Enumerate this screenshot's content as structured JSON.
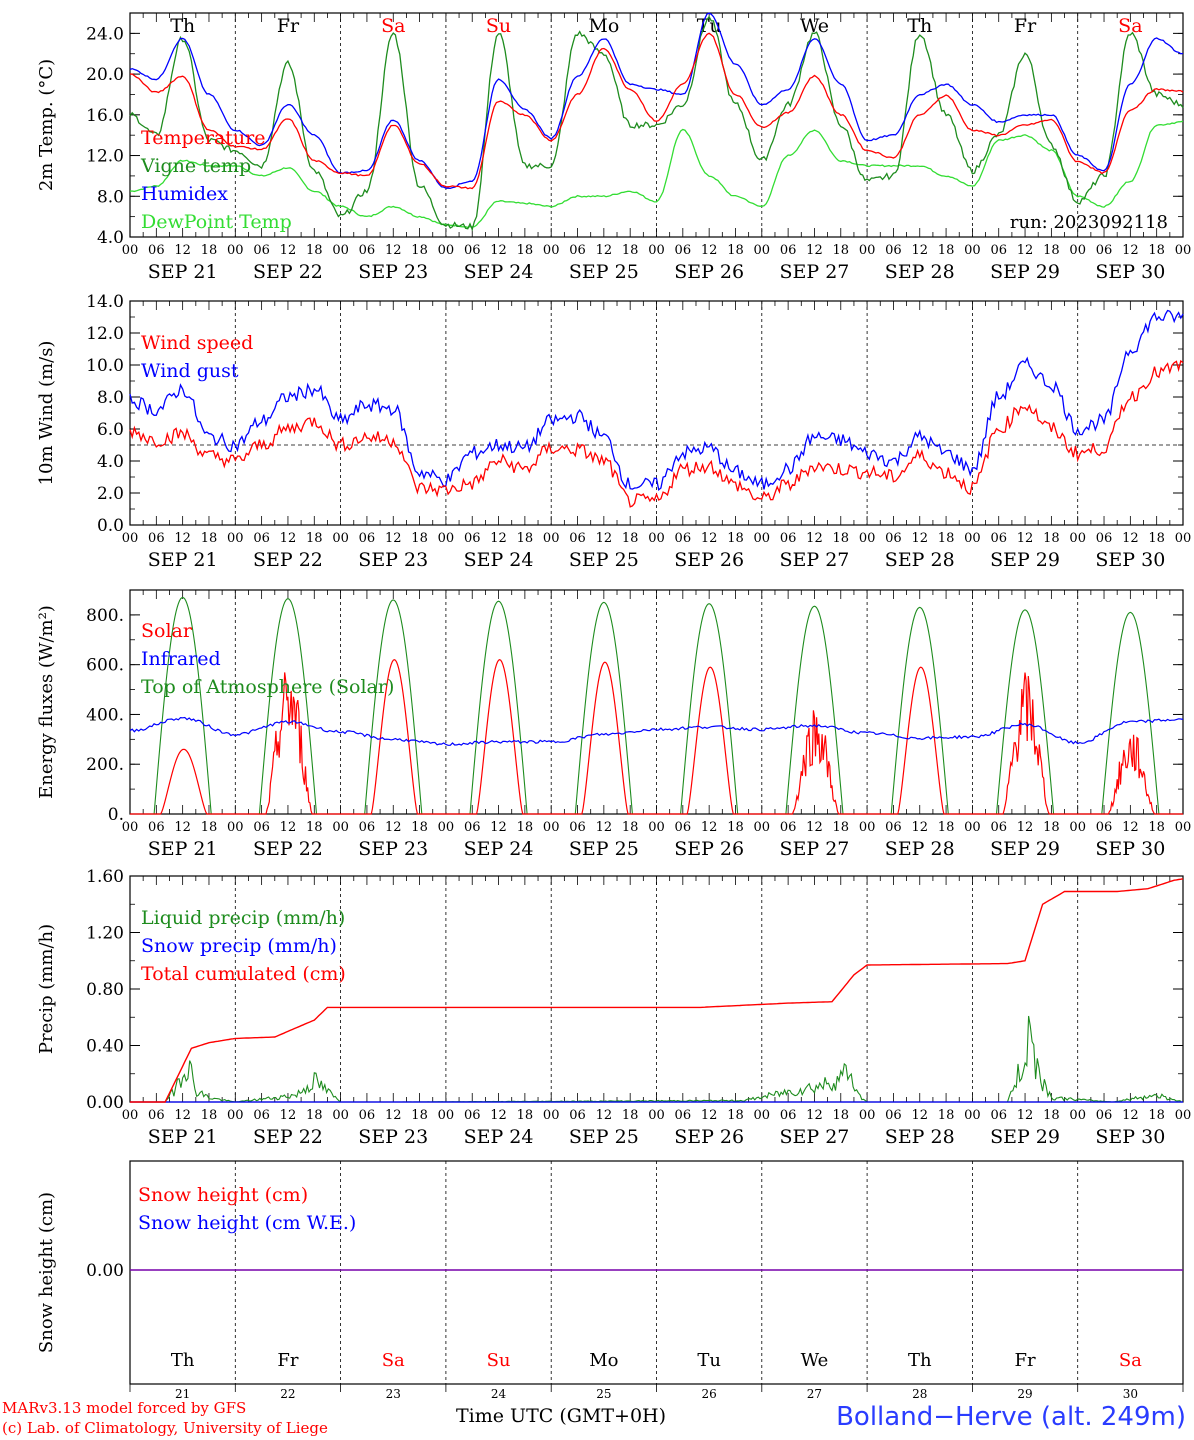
{
  "colors": {
    "red": "#ff0000",
    "green": "#1e8c1e",
    "lightgreen": "#33dd33",
    "blue": "#0000ff",
    "purple": "#7700aa",
    "black": "#000000"
  },
  "x_axis": {
    "hour_ticks": [
      "00",
      "06",
      "12",
      "18"
    ],
    "final_tick": "00",
    "dates": [
      "SEP 21",
      "SEP 22",
      "SEP 23",
      "SEP 24",
      "SEP 25",
      "SEP 26",
      "SEP 27",
      "SEP 28",
      "SEP 29",
      "SEP 30"
    ],
    "weekdays": [
      "Th",
      "Fr",
      "Sa",
      "Su",
      "Mo",
      "Tu",
      "We",
      "Th",
      "Fr",
      "Sa"
    ],
    "weekend_flags": [
      false,
      false,
      true,
      true,
      false,
      false,
      false,
      false,
      false,
      true
    ],
    "day_numbers": [
      "21",
      "22",
      "23",
      "24",
      "25",
      "26",
      "27",
      "28",
      "29",
      "30"
    ]
  },
  "footer": {
    "model_line": "MARv3.13 model forced by GFS",
    "lab_line": "(c) Lab. of Climatology, University of Liege",
    "xlabel": "Time UTC (GMT+0H)",
    "station": "Bolland−Herve (alt. 249m)"
  },
  "chart_data": [
    {
      "type": "line",
      "ylabel": "2m Temp. (°C)",
      "ylim": [
        4,
        26
      ],
      "yticks": [
        4.0,
        8.0,
        12.0,
        16.0,
        20.0,
        24.0
      ],
      "ytick_labels": [
        "4.0",
        "8.0",
        "12.0",
        "16.0",
        "20.0",
        "24.0"
      ],
      "annotation": "run: 2023092118",
      "x": [
        0,
        6,
        12,
        18,
        24,
        30,
        36,
        42,
        48,
        54,
        60,
        66,
        72,
        78,
        84,
        90,
        96,
        102,
        108,
        114,
        120,
        126,
        132,
        138,
        144,
        150,
        156,
        162,
        168,
        174,
        180,
        186,
        192,
        198,
        204,
        210,
        216,
        222,
        228,
        234,
        240
      ],
      "series": [
        {
          "name": "Temperature",
          "color": "red",
          "values": [
            20,
            18.2,
            19.8,
            14.5,
            12.9,
            12.6,
            15.6,
            11.5,
            10.3,
            10.0,
            15.0,
            11.2,
            9.0,
            8.8,
            17.3,
            16.0,
            13.5,
            18.0,
            22.5,
            18.5,
            15.4,
            19.0,
            24.0,
            18.0,
            14.8,
            16.2,
            19.8,
            16.0,
            12.5,
            11.8,
            16.0,
            17.9,
            14.5,
            14.0,
            15.0,
            15.5,
            11.4,
            10.3,
            16.5,
            18.5,
            18.3
          ]
        },
        {
          "name": "Vigne temp",
          "color": "green",
          "values": [
            16,
            14.0,
            23.5,
            13.5,
            12.5,
            11.0,
            21.0,
            10.5,
            6.0,
            8.5,
            24.0,
            9.0,
            5.2,
            5.0,
            24.0,
            11.0,
            11.0,
            24.0,
            22.0,
            15.0,
            15.0,
            17.0,
            25.5,
            17.0,
            11.5,
            17.0,
            24.0,
            15.0,
            9.5,
            10.0,
            24.0,
            16.0,
            10.5,
            14.0,
            22.0,
            13.0,
            7.5,
            10.0,
            24.0,
            18.0,
            17.0
          ]
        },
        {
          "name": "Humidex",
          "color": "blue",
          "values": [
            20.5,
            19.5,
            23.5,
            18.0,
            14.5,
            13.0,
            17.0,
            14.0,
            10.3,
            10.5,
            15.5,
            11.5,
            8.8,
            9.5,
            19.5,
            16.5,
            13.7,
            19.8,
            23.5,
            19.0,
            18.5,
            18.0,
            26.0,
            21.0,
            17.0,
            18.5,
            23.5,
            19.0,
            13.5,
            14.0,
            18.0,
            19.0,
            17.0,
            15.3,
            16.0,
            16.0,
            12.0,
            10.5,
            19.0,
            23.5,
            22.0
          ]
        },
        {
          "name": "DewPoint Temp",
          "color": "lightgreen",
          "values": [
            8.5,
            9.0,
            11.5,
            11.0,
            11.0,
            10.0,
            10.8,
            8.5,
            7.0,
            6.0,
            7.0,
            6.0,
            5.2,
            5.0,
            7.5,
            7.3,
            7.0,
            8.0,
            8.0,
            8.5,
            7.5,
            14.5,
            10.0,
            8.0,
            7.0,
            12.0,
            14.5,
            11.5,
            11.0,
            11.0,
            11.0,
            10.0,
            9.0,
            13.5,
            14.0,
            12.5,
            8.0,
            7.0,
            9.5,
            15.0,
            15.3
          ]
        }
      ]
    },
    {
      "type": "line",
      "ylabel": "10m Wind (m/s)",
      "ylim": [
        0,
        14
      ],
      "yticks": [
        0,
        2,
        4,
        6,
        8,
        10,
        12,
        14
      ],
      "ytick_labels": [
        "0.0",
        "2.0",
        "4.0",
        "6.0",
        "8.0",
        "10.0",
        "12.0",
        "14.0"
      ],
      "reference_line": 5.0,
      "x": [
        0,
        6,
        12,
        18,
        24,
        30,
        36,
        42,
        48,
        54,
        60,
        66,
        72,
        78,
        84,
        90,
        96,
        102,
        108,
        114,
        120,
        126,
        132,
        138,
        144,
        150,
        156,
        162,
        168,
        174,
        180,
        186,
        192,
        198,
        204,
        210,
        216,
        222,
        228,
        234,
        240
      ],
      "series": [
        {
          "name": "Wind speed",
          "color": "red",
          "values": [
            5.9,
            5.3,
            5.7,
            4.3,
            4.0,
            5.0,
            6.0,
            6.5,
            5.0,
            5.5,
            5.3,
            2.3,
            2.2,
            2.6,
            4.0,
            3.5,
            4.8,
            4.7,
            4.0,
            1.5,
            1.5,
            3.5,
            3.7,
            2.5,
            1.6,
            2.5,
            3.7,
            3.5,
            3.3,
            3.0,
            4.3,
            3.3,
            2.3,
            6.0,
            7.5,
            6.0,
            4.5,
            4.8,
            8.0,
            9.5,
            10.0
          ]
        },
        {
          "name": "Wind gust",
          "color": "blue",
          "values": [
            7.8,
            7.2,
            8.5,
            5.5,
            5.0,
            6.5,
            8.0,
            8.5,
            6.5,
            7.5,
            7.3,
            3.3,
            2.8,
            4.5,
            5.0,
            4.8,
            6.5,
            6.8,
            5.5,
            2.5,
            2.5,
            4.5,
            4.8,
            3.3,
            2.5,
            3.5,
            5.5,
            5.3,
            4.5,
            4.0,
            5.5,
            4.5,
            3.5,
            8.0,
            10.0,
            8.8,
            6.0,
            6.5,
            11.0,
            13.0,
            13.0
          ]
        }
      ]
    },
    {
      "type": "line",
      "ylabel": "Energy fluxes (W/m²)",
      "ylim": [
        0,
        900
      ],
      "yticks": [
        0,
        200,
        400,
        600,
        800
      ],
      "ytick_labels": [
        "0.",
        "200.",
        "400.",
        "600.",
        "800."
      ],
      "series": [
        {
          "name": "Solar",
          "color": "red",
          "daily_peaks": [
            260,
            620,
            620,
            620,
            610,
            590,
            450,
            590,
            580,
            350
          ]
        },
        {
          "name": "Infrared",
          "color": "blue",
          "x": [
            0,
            12,
            24,
            36,
            48,
            60,
            72,
            84,
            96,
            108,
            120,
            132,
            144,
            156,
            168,
            180,
            192,
            204,
            216,
            228,
            240
          ],
          "values": [
            335,
            385,
            320,
            370,
            330,
            300,
            280,
            290,
            290,
            320,
            340,
            350,
            340,
            355,
            325,
            305,
            310,
            360,
            285,
            370,
            380
          ]
        },
        {
          "name": "Top of Atmosphere (Solar)",
          "color": "green",
          "daily_peaks": [
            870,
            865,
            860,
            855,
            850,
            845,
            835,
            830,
            820,
            810
          ]
        }
      ]
    },
    {
      "type": "line",
      "ylabel": "Precip (mm/h)",
      "ylim": [
        0,
        1.6
      ],
      "yticks": [
        0,
        0.4,
        0.8,
        1.2,
        1.6
      ],
      "ytick_labels": [
        "0.00",
        "0.40",
        "0.80",
        "1.20",
        "1.60"
      ],
      "series": [
        {
          "name": "Liquid precip (mm/h)",
          "color": "green",
          "x": [
            0,
            8,
            10,
            13,
            15,
            18,
            24,
            33,
            38,
            42,
            46,
            48,
            60,
            140,
            158,
            162,
            164,
            166,
            168,
            200,
            204,
            205,
            206,
            208,
            210,
            224,
            234,
            240
          ],
          "values": [
            0,
            0,
            0.08,
            0.3,
            0.08,
            0.03,
            0,
            0.03,
            0.05,
            0.15,
            0.05,
            0,
            0,
            0.01,
            0.12,
            0.18,
            0.22,
            0.05,
            0,
            0,
            0.3,
            0.55,
            0.35,
            0.15,
            0.03,
            0,
            0.05,
            0
          ]
        },
        {
          "name": "Snow precip (mm/h)",
          "color": "blue",
          "x": [
            0,
            240
          ],
          "values": [
            0,
            0
          ]
        },
        {
          "name": "Total cumulated (cm)",
          "color": "red",
          "x": [
            0,
            8,
            14,
            18,
            24,
            33,
            42,
            45,
            60,
            130,
            150,
            160,
            165,
            168,
            200,
            204,
            208,
            213,
            225,
            232,
            238,
            240
          ],
          "values": [
            0,
            0,
            0.38,
            0.42,
            0.45,
            0.46,
            0.58,
            0.67,
            0.67,
            0.67,
            0.7,
            0.71,
            0.9,
            0.97,
            0.98,
            1.0,
            1.4,
            1.49,
            1.49,
            1.51,
            1.57,
            1.58
          ]
        }
      ]
    },
    {
      "type": "line",
      "ylabel": "Snow height (cm)",
      "ytick_labels": [
        "0.00"
      ],
      "series": [
        {
          "name": "Snow height (cm)",
          "color": "red",
          "x": [
            0,
            240
          ],
          "values": [
            0,
            0
          ]
        },
        {
          "name": "Snow height (cm W.E.)",
          "color": "blue",
          "x": [
            0,
            240
          ],
          "values": [
            0,
            0
          ]
        }
      ]
    }
  ]
}
